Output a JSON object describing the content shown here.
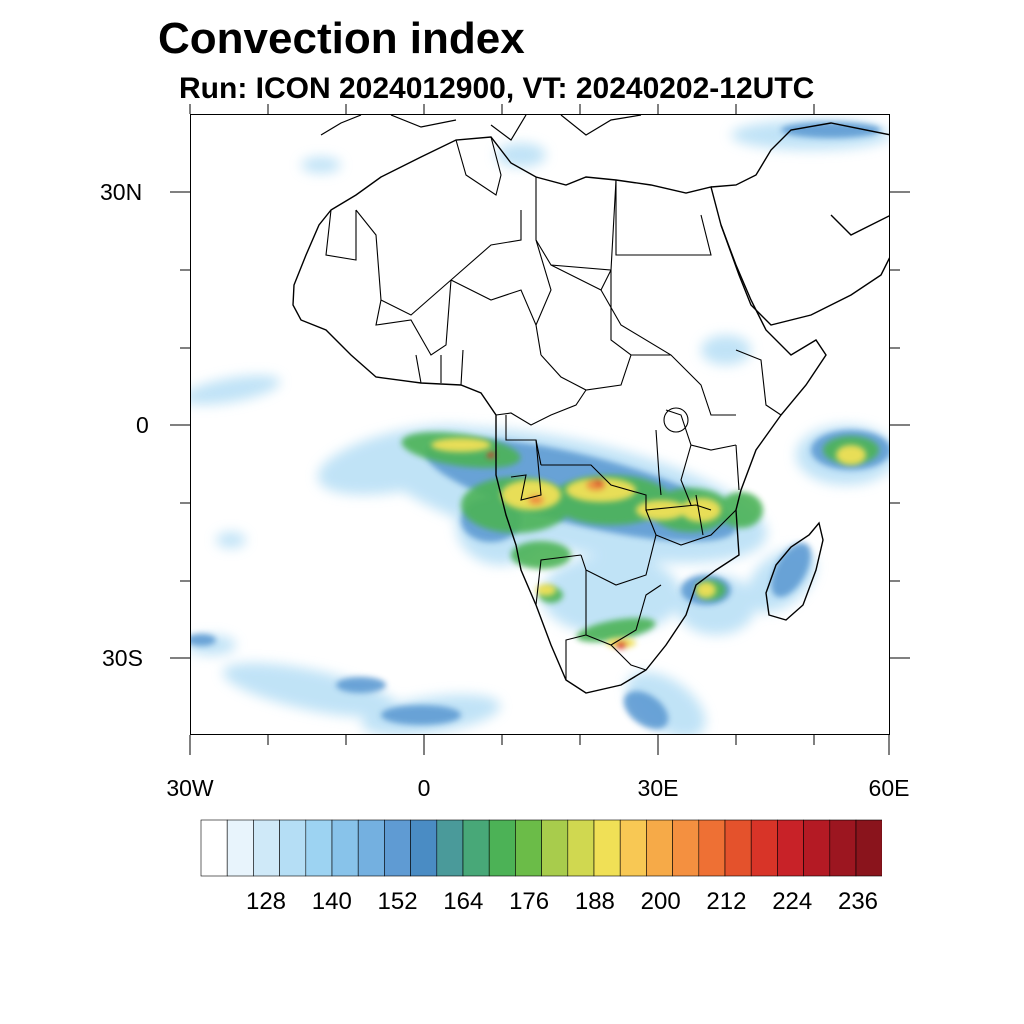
{
  "title": "Convection index",
  "subtitle": "Run: ICON 2024012900,  VT: 20240202-12UTC",
  "map": {
    "region": "Africa",
    "lat_labels": [
      "30N",
      "0",
      "30S"
    ],
    "lon_labels": [
      "30W",
      "0",
      "30E",
      "60E"
    ],
    "coastline_color": "#000000"
  },
  "colorbar": {
    "labels": [
      "128",
      "140",
      "152",
      "164",
      "176",
      "188",
      "200",
      "212",
      "224",
      "236"
    ],
    "colors": [
      "#ffffff",
      "#e8f4fc",
      "#cfe9f8",
      "#b5def5",
      "#9dd3f2",
      "#88c3ea",
      "#74b0e0",
      "#5f9bd3",
      "#4a8cc4",
      "#4a9a9a",
      "#48a878",
      "#4cb256",
      "#6bbc48",
      "#a8cc4c",
      "#d0d850",
      "#f0e056",
      "#f8c854",
      "#f6aa48",
      "#f49040",
      "#ee7034",
      "#e4522c",
      "#d83428",
      "#c82228",
      "#b41a24",
      "#9c1620",
      "#8a141c"
    ]
  }
}
